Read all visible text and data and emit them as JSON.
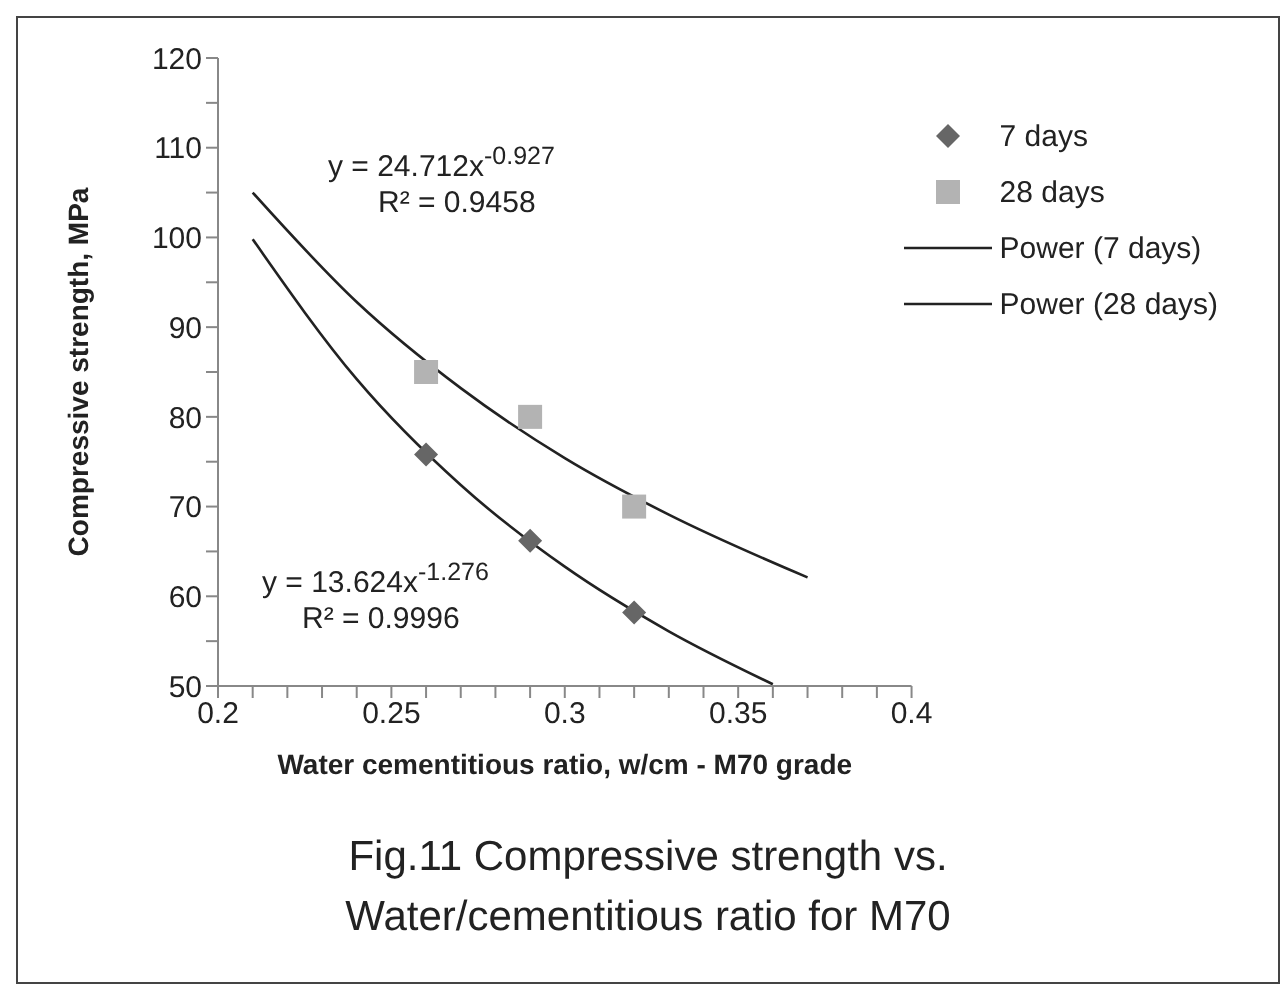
{
  "chart_data": {
    "type": "scatter",
    "xlabel": "Water cementitious ratio, w/cm - M70 grade",
    "ylabel": "Compressive strength, MPa",
    "xlim": [
      0.2,
      0.4
    ],
    "ylim": [
      50,
      120
    ],
    "xticks": [
      0.2,
      {
        "value": 0.21,
        "label": null
      },
      {
        "value": 0.22,
        "label": null
      },
      {
        "value": 0.23,
        "label": null
      },
      {
        "value": 0.24,
        "label": null
      },
      0.25,
      {
        "value": 0.26,
        "label": null
      },
      {
        "value": 0.27,
        "label": null
      },
      {
        "value": 0.28,
        "label": null
      },
      {
        "value": 0.29,
        "label": null
      },
      0.3,
      {
        "value": 0.31,
        "label": null
      },
      {
        "value": 0.32,
        "label": null
      },
      {
        "value": 0.33,
        "label": null
      },
      {
        "value": 0.34,
        "label": null
      },
      0.35,
      {
        "value": 0.36,
        "label": null
      },
      {
        "value": 0.37,
        "label": null
      },
      {
        "value": 0.38,
        "label": null
      },
      {
        "value": 0.39,
        "label": null
      },
      0.4
    ],
    "yticks": [
      50,
      {
        "value": 55,
        "label": null
      },
      60,
      {
        "value": 65,
        "label": null
      },
      70,
      {
        "value": 75,
        "label": null
      },
      80,
      {
        "value": 85,
        "label": null
      },
      90,
      {
        "value": 95,
        "label": null
      },
      100,
      {
        "value": 105,
        "label": null
      },
      110,
      {
        "value": 115,
        "label": null
      },
      120
    ],
    "legend": "top right",
    "series": [
      {
        "name": "7 days",
        "marker": "diamond",
        "color": "#666666",
        "x": [
          0.26,
          0.29,
          0.32
        ],
        "values": [
          75.8,
          66.2,
          58.2
        ]
      },
      {
        "name": "28 days",
        "marker": "square",
        "color": "#b3b3b3",
        "x": [
          0.26,
          0.29,
          0.32
        ],
        "values": [
          85,
          80,
          70
        ]
      },
      {
        "name": "Power (7 days)",
        "type": "line",
        "marker": "none",
        "line_style": "solid",
        "color": "#222222",
        "x": [
          0.21,
          0.24,
          0.27,
          0.3,
          0.33,
          0.36
        ],
        "values": [
          99.8,
          84.2,
          72.4,
          63.3,
          56.1,
          50.2
        ]
      },
      {
        "name": "Power (28 days)",
        "type": "line",
        "marker": "none",
        "line_style": "solid",
        "color": "#222222",
        "x": [
          0.21,
          0.24,
          0.27,
          0.3,
          0.33,
          0.37
        ],
        "values": [
          105.0,
          92.8,
          83.2,
          75.4,
          69.1,
          62.1
        ]
      }
    ],
    "annotations": [
      "y = 24.712x$^{-0.927}$",
      "R² = 0.9458",
      "y = 13.624x$^{-1.276}$",
      "R² = 0.9996",
      "Fig.11 Compressive strength vs. Water/cementitious ratio for M70"
    ]
  }
}
